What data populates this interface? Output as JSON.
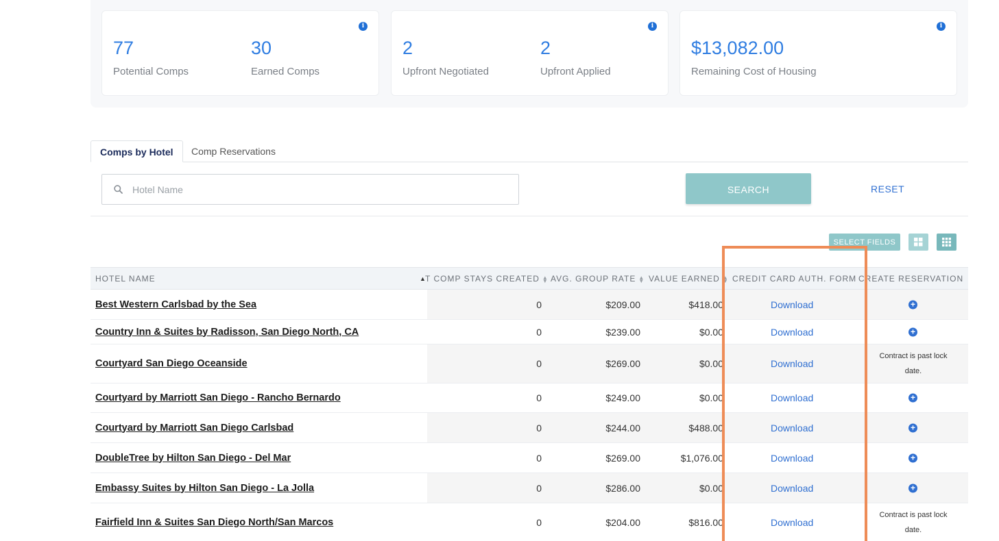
{
  "stats": [
    {
      "items": [
        {
          "value": "77",
          "label": "Potential Comps"
        },
        {
          "value": "30",
          "label": "Earned Comps"
        }
      ]
    },
    {
      "items": [
        {
          "value": "2",
          "label": "Upfront Negotiated"
        },
        {
          "value": "2",
          "label": "Upfront Applied"
        }
      ]
    },
    {
      "items": [
        {
          "value": "$13,082.00",
          "label": "Remaining Cost of Housing"
        }
      ]
    }
  ],
  "info_icon_glyph": "i",
  "tabs": [
    {
      "label": "Comps by Hotel",
      "active": true
    },
    {
      "label": "Comp Reservations",
      "active": false
    }
  ],
  "search": {
    "placeholder": "Hotel Name",
    "value": "",
    "button_label": "SEARCH",
    "reset_label": "RESET"
  },
  "toolbar": {
    "select_fields_label": "SELECT FIELDS"
  },
  "table": {
    "headers": {
      "hotel": "HOTEL NAME",
      "stays": "T COMP STAYS CREATED",
      "rate": "AVG. GROUP RATE",
      "earned": "VALUE EARNED",
      "ccform": "CREDIT CARD AUTH. FORM",
      "create": "CREATE RESERVATION"
    },
    "rows": [
      {
        "hotel": "Best Western Carlsbad by the Sea",
        "stays": "0",
        "rate": "$209.00",
        "earned": "$418.00",
        "ccform": "Download",
        "create": "plus"
      },
      {
        "hotel": "Country Inn & Suites by Radisson, San Diego North, CA",
        "stays": "0",
        "rate": "$239.00",
        "earned": "$0.00",
        "ccform": "Download",
        "create": "plus"
      },
      {
        "hotel": "Courtyard San Diego Oceanside",
        "stays": "0",
        "rate": "$269.00",
        "earned": "$0.00",
        "ccform": "Download",
        "create": "Contract is past lock date."
      },
      {
        "hotel": "Courtyard by Marriott San Diego - Rancho Bernardo",
        "stays": "0",
        "rate": "$249.00",
        "earned": "$0.00",
        "ccform": "Download",
        "create": "plus"
      },
      {
        "hotel": "Courtyard by Marriott San Diego Carlsbad",
        "stays": "0",
        "rate": "$244.00",
        "earned": "$488.00",
        "ccform": "Download",
        "create": "plus"
      },
      {
        "hotel": "DoubleTree by Hilton San Diego - Del Mar",
        "stays": "0",
        "rate": "$269.00",
        "earned": "$1,076.00",
        "ccform": "Download",
        "create": "plus"
      },
      {
        "hotel": "Embassy Suites by Hilton San Diego - La Jolla",
        "stays": "0",
        "rate": "$286.00",
        "earned": "$0.00",
        "ccform": "Download",
        "create": "plus"
      },
      {
        "hotel": "Fairfield Inn & Suites San Diego North/San Marcos",
        "stays": "0",
        "rate": "$204.00",
        "earned": "$816.00",
        "ccform": "Download",
        "create": "Contract is past lock date."
      }
    ]
  },
  "colors": {
    "accent": "#2f7de1",
    "teal_button": "#8fc7c9",
    "link": "#2f6fd1",
    "highlight": "#ee8c57"
  }
}
